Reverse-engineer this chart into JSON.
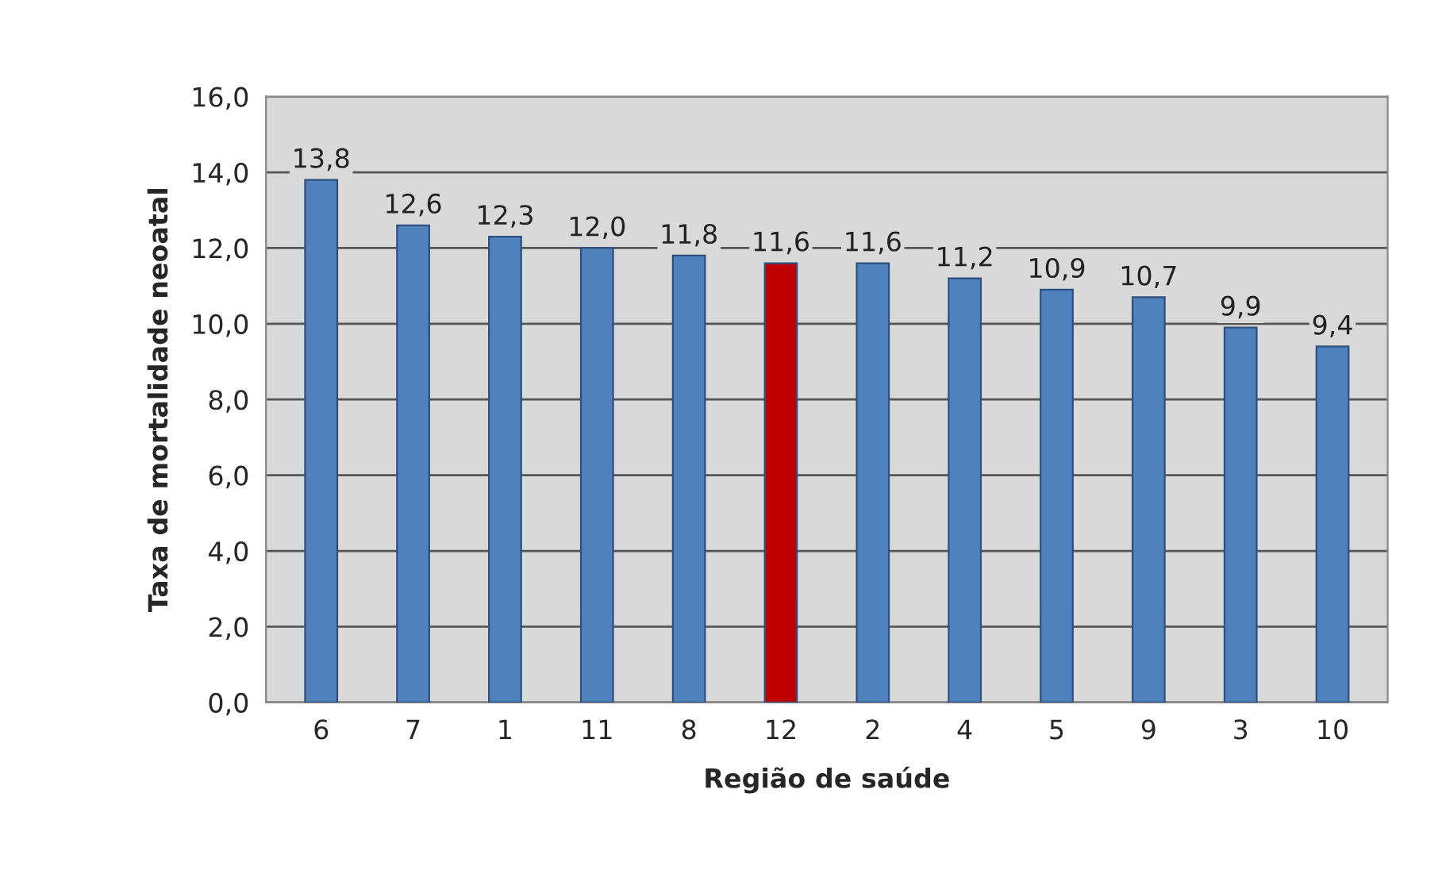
{
  "chart_data": {
    "type": "bar",
    "xlabel": "Região de saúde",
    "ylabel": "Taxa de mortalidade neoatal",
    "categories": [
      "6",
      "7",
      "1",
      "11",
      "8",
      "12",
      "2",
      "4",
      "5",
      "9",
      "3",
      "10"
    ],
    "values": [
      13.8,
      12.6,
      12.3,
      12.0,
      11.8,
      11.6,
      11.6,
      11.2,
      10.9,
      10.7,
      9.9,
      9.4
    ],
    "colors": [
      "#4f81bd",
      "#4f81bd",
      "#4f81bd",
      "#4f81bd",
      "#4f81bd",
      "#c00000",
      "#4f81bd",
      "#4f81bd",
      "#4f81bd",
      "#4f81bd",
      "#4f81bd",
      "#4f81bd"
    ],
    "value_labels": [
      "13,8",
      "12,6",
      "12,3",
      "12,0",
      "11,8",
      "11,6",
      "11,6",
      "11,2",
      "10,9",
      "10,7",
      "9,9",
      "9,4"
    ],
    "ylim": [
      0,
      16
    ],
    "yticks": [
      {
        "value": 0,
        "label": "0,0"
      },
      {
        "value": 2,
        "label": "2,0"
      },
      {
        "value": 4,
        "label": "4,0"
      },
      {
        "value": 6,
        "label": "6,0"
      },
      {
        "value": 8,
        "label": "8,0"
      },
      {
        "value": 10,
        "label": "10,0"
      },
      {
        "value": 12,
        "label": "12,0"
      },
      {
        "value": 14,
        "label": "14,0"
      },
      {
        "value": 16,
        "label": "16,0"
      }
    ],
    "grid": "y"
  }
}
